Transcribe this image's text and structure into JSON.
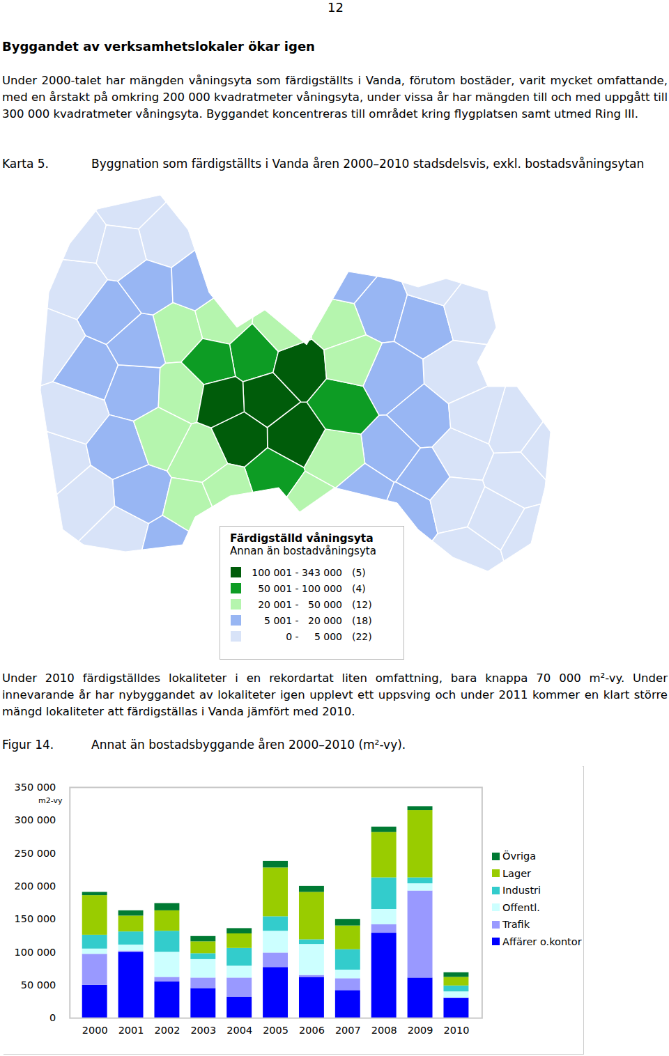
{
  "document": {
    "page_number": "12",
    "heading": "Byggandet av verksamhetslokaler ökar igen",
    "paragraph1": "Under 2000-talet har mängden våningsyta som färdigställts i Vanda, förutom bostäder, varit mycket omfattande, med en årstakt på omkring 200 000 kvadratmeter våningsyta, under vissa år har mängden till och med uppgått till 300 000 kvadratmeter våningsyta. Byggandet koncentreras till området kring flygplatsen samt utmed Ring III.",
    "map_number": "Karta 5.",
    "map_caption": "Byggnation som färdigställts i Vanda åren 2000–2010 stadsdelsvis, exkl. bostadsvåningsytan",
    "paragraph2": "Under 2010 färdigställdes lokaliteter i en rekordartat liten omfattning, bara knappa 70 000 m²-vy. Under innevarande år har nybyggandet av lokaliteter igen upplevt ett uppsving och under 2011 kommer en klart större mängd lokaliteter att färdigställas i Vanda jämfört med 2010.",
    "figure_number": "Figur 14.",
    "figure_caption": "Annat än bostadsbyggande åren 2000–2010 (m²-vy)."
  },
  "map": {
    "legend_title": "Färdigställd våningsyta",
    "legend_subtitle": "Annan än bostadvåningsyta",
    "classes": [
      {
        "label": "100 001 - 343 000",
        "count": 5,
        "count_label": "(5)",
        "color": "#005c0a"
      },
      {
        "label": "50 001 - 100 000",
        "count": 4,
        "count_label": "(4)",
        "color": "#0d9c24"
      },
      {
        "label": "20 001 -   50 000",
        "count": 12,
        "count_label": "(12)",
        "color": "#b5f5ae"
      },
      {
        "label": "5 001 -   20 000",
        "count": 18,
        "count_label": "(18)",
        "color": "#98b6f3"
      },
      {
        "label": "0 -     5 000",
        "count": 22,
        "count_label": "(22)",
        "color": "#d8e3f8"
      }
    ]
  },
  "chart_data": {
    "type": "bar",
    "stacked": true,
    "legend": "right",
    "grid": false,
    "ylabel": "m2-vy",
    "categories": [
      "2000",
      "2001",
      "2002",
      "2003",
      "2004",
      "2005",
      "2006",
      "2007",
      "2008",
      "2009",
      "2010"
    ],
    "ylim": [
      0,
      350000
    ],
    "yticks": [
      0,
      {
        "value": 50000,
        "label": "50 000"
      },
      {
        "value": 100000,
        "label": "100 000"
      },
      {
        "value": 150000,
        "label": "150 000"
      },
      {
        "value": 200000,
        "label": "200 000"
      },
      {
        "value": 250000,
        "label": "250 000"
      },
      {
        "value": 300000,
        "label": "300 000"
      },
      {
        "value": 350000,
        "label": "350 000"
      }
    ],
    "series": [
      {
        "name": "Affärer o.kontor",
        "color": "#0000ff",
        "values": [
          50000,
          100000,
          55000,
          45000,
          32000,
          77000,
          62000,
          42000,
          129000,
          61000,
          30000
        ]
      },
      {
        "name": "Trafik",
        "color": "#9999ff",
        "values": [
          47000,
          2000,
          7000,
          16000,
          29000,
          22000,
          3000,
          18000,
          13000,
          132000,
          1000
        ]
      },
      {
        "name": "Offentl.",
        "color": "#ccffff",
        "values": [
          8000,
          9000,
          38000,
          28000,
          18000,
          33000,
          47000,
          13000,
          23000,
          11000,
          9000
        ]
      },
      {
        "name": "Industri",
        "color": "#33cccc",
        "values": [
          21000,
          20000,
          32000,
          9000,
          27000,
          22000,
          7000,
          31000,
          48000,
          9000,
          9000
        ]
      },
      {
        "name": "Lager",
        "color": "#99cc00",
        "values": [
          60000,
          24000,
          31000,
          18000,
          22000,
          74000,
          72000,
          36000,
          69000,
          102000,
          13000
        ]
      },
      {
        "name": "Övriga",
        "color": "#007a33",
        "values": [
          5000,
          8000,
          11000,
          8000,
          8000,
          10000,
          9000,
          10000,
          8000,
          6000,
          7000
        ]
      }
    ]
  }
}
